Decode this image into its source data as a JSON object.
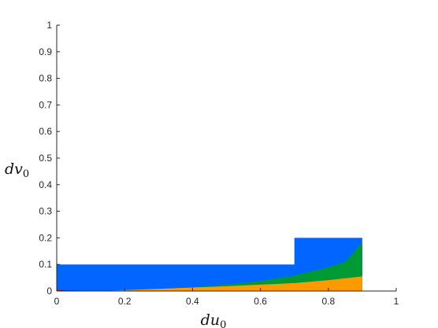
{
  "chart_data": {
    "type": "area",
    "xlabel": {
      "main": "du",
      "sub": "0"
    },
    "ylabel": {
      "main": "dv",
      "sub": "0"
    },
    "xlim": [
      0,
      1
    ],
    "ylim": [
      0,
      1
    ],
    "x_ticks": [
      0,
      0.2,
      0.4,
      0.6,
      0.8,
      1
    ],
    "y_ticks": [
      0,
      0.1,
      0.2,
      0.3,
      0.4,
      0.5,
      0.6,
      0.7,
      0.8,
      0.9,
      1
    ],
    "x_tick_labels": [
      "0",
      "0.2",
      "0.4",
      "0.6",
      "0.8",
      "1"
    ],
    "y_tick_labels": [
      "0",
      "0.1",
      "0.2",
      "0.3",
      "0.4",
      "0.5",
      "0.6",
      "0.7",
      "0.8",
      "0.9",
      "1"
    ],
    "grid": false,
    "regions": [
      {
        "color": "#0066ff",
        "points": [
          [
            0,
            0
          ],
          [
            0,
            0.1
          ],
          [
            0.7,
            0.1
          ],
          [
            0.7,
            0.2
          ],
          [
            0.9,
            0.2
          ],
          [
            0.9,
            0
          ]
        ]
      },
      {
        "color": "#009933",
        "points": [
          [
            0.1,
            0
          ],
          [
            0.2,
            0.003
          ],
          [
            0.3,
            0.007
          ],
          [
            0.4,
            0.014
          ],
          [
            0.5,
            0.024
          ],
          [
            0.6,
            0.038
          ],
          [
            0.7,
            0.059
          ],
          [
            0.8,
            0.09
          ],
          [
            0.85,
            0.11
          ],
          [
            0.9,
            0.183
          ],
          [
            0.9,
            0
          ]
        ]
      },
      {
        "color": "#ff9900",
        "points": [
          [
            0.12,
            0
          ],
          [
            0.3,
            0.008
          ],
          [
            0.5,
            0.018
          ],
          [
            0.7,
            0.03
          ],
          [
            0.8,
            0.041
          ],
          [
            0.9,
            0.055
          ],
          [
            0.9,
            0
          ]
        ]
      },
      {
        "color": "#e60000",
        "points": [
          [
            0,
            0
          ],
          [
            0,
            0.005
          ],
          [
            0.03,
            0.003
          ],
          [
            0.1,
            0
          ],
          [
            0,
            0
          ]
        ]
      }
    ]
  }
}
